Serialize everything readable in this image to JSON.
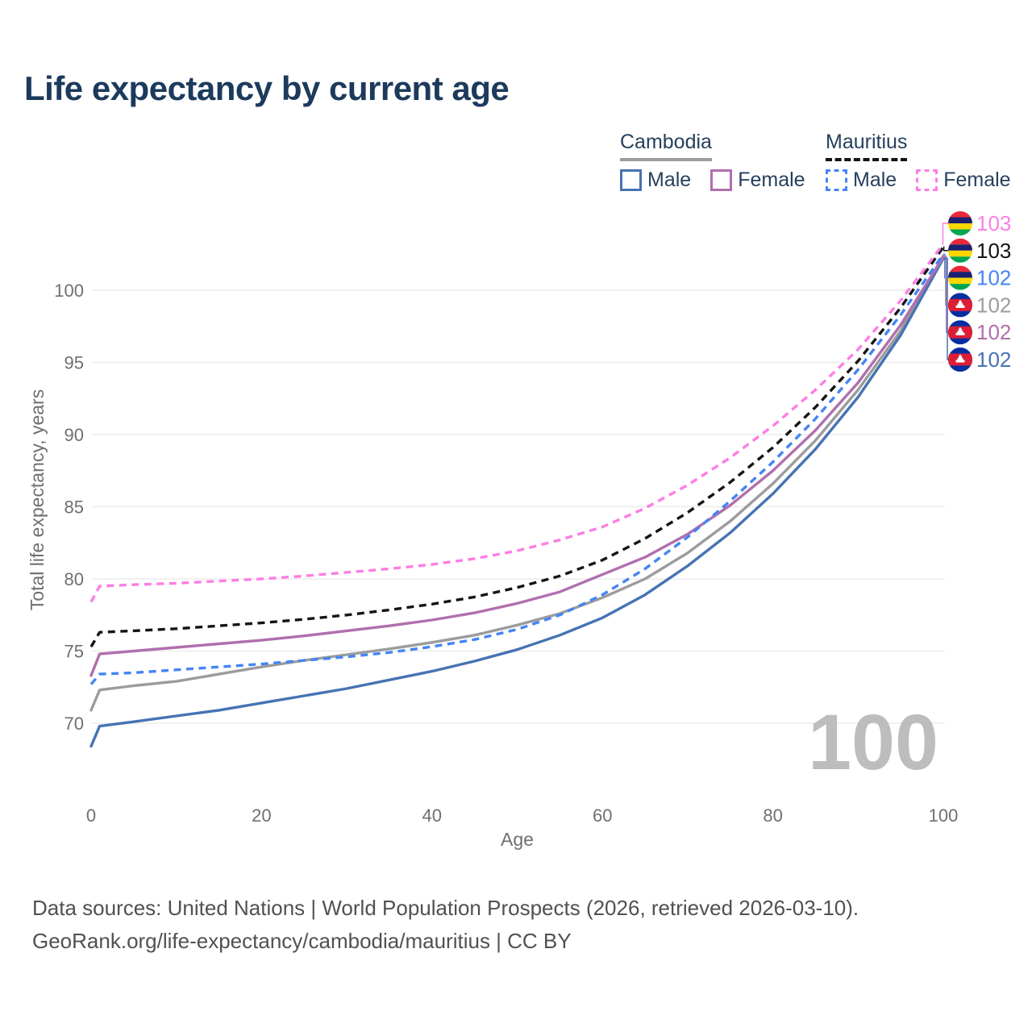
{
  "theme": {
    "background": "#ffffff",
    "title_color": "#1c3a5c",
    "legend_text_color": "#26405c",
    "axis_text_color": "#6f6f6f",
    "gridline_color": "#ebebeb",
    "footer_text_color": "#515151",
    "watermark_color": "#bdbdbd"
  },
  "header": {
    "title": "Life expectancy by current age"
  },
  "legend": {
    "groups": [
      {
        "id": "cambodia",
        "label": "Cambodia",
        "underline_style": "solid",
        "underline_color": "#9c9c9c",
        "items": [
          {
            "id": "cambodia-male",
            "label": "Male",
            "color": "#4673b3",
            "dash": "solid"
          },
          {
            "id": "cambodia-female",
            "label": "Female",
            "color": "#b06fae",
            "dash": "solid"
          }
        ]
      },
      {
        "id": "mauritius",
        "label": "Mauritius",
        "underline_style": "dashed",
        "underline_color": "#141414",
        "items": [
          {
            "id": "mauritius-male",
            "label": "Male",
            "color": "#4485f4",
            "dash": "dashed"
          },
          {
            "id": "mauritius-female",
            "label": "Female",
            "color": "#fd7ee3",
            "dash": "dashed"
          }
        ]
      }
    ]
  },
  "chart_data": {
    "type": "line",
    "title": "Life expectancy by current age",
    "xlabel": "Age",
    "ylabel": "Total life expectancy, years",
    "x_ticks": [
      0,
      20,
      40,
      60,
      80,
      100
    ],
    "y_ticks": [
      70,
      75,
      80,
      85,
      90,
      95,
      100
    ],
    "xlim": [
      0,
      100
    ],
    "ylim": [
      68,
      104
    ],
    "grid": "horizontal",
    "legend_position": "top-right",
    "watermark": "100",
    "x": [
      0,
      1,
      5,
      10,
      15,
      20,
      25,
      30,
      35,
      40,
      45,
      50,
      55,
      60,
      65,
      70,
      75,
      80,
      85,
      90,
      95,
      100
    ],
    "series": [
      {
        "id": "cambodia-all",
        "name": "Cambodia",
        "country": "Cambodia",
        "sex": "Both",
        "color": "#9c9c9c",
        "dash": "solid",
        "values": [
          70.9,
          72.3,
          72.6,
          72.9,
          73.4,
          73.9,
          74.35,
          74.75,
          75.15,
          75.6,
          76.1,
          76.8,
          77.6,
          78.7,
          80.0,
          81.8,
          84.0,
          86.6,
          89.6,
          93.1,
          97.2,
          102.4
        ]
      },
      {
        "id": "cambodia-male",
        "name": "Cambodia Male",
        "country": "Cambodia",
        "sex": "Male",
        "color": "#4673b3",
        "dash": "solid",
        "values": [
          68.4,
          69.8,
          70.1,
          70.5,
          70.9,
          71.4,
          71.9,
          72.4,
          73.0,
          73.6,
          74.3,
          75.1,
          76.1,
          77.3,
          78.9,
          80.9,
          83.2,
          85.9,
          89.0,
          92.6,
          96.9,
          102.2
        ]
      },
      {
        "id": "cambodia-female",
        "name": "Cambodia Female",
        "country": "Cambodia",
        "sex": "Female",
        "color": "#b06fae",
        "dash": "solid",
        "values": [
          73.3,
          74.8,
          75.0,
          75.25,
          75.5,
          75.75,
          76.05,
          76.4,
          76.75,
          77.15,
          77.65,
          78.3,
          79.1,
          80.3,
          81.5,
          83.1,
          85.1,
          87.5,
          90.3,
          93.6,
          97.6,
          102.3
        ]
      },
      {
        "id": "mauritius-all",
        "name": "Mauritius",
        "country": "Mauritius",
        "sex": "Both",
        "color": "#141414",
        "dash": "dashed",
        "values": [
          75.3,
          76.3,
          76.4,
          76.55,
          76.75,
          76.95,
          77.2,
          77.5,
          77.85,
          78.25,
          78.75,
          79.4,
          80.2,
          81.3,
          82.8,
          84.6,
          86.7,
          89.1,
          91.9,
          95.1,
          98.8,
          103.0
        ]
      },
      {
        "id": "mauritius-male",
        "name": "Mauritius Male",
        "country": "Mauritius",
        "sex": "Male",
        "color": "#4485f4",
        "dash": "dashed",
        "values": [
          72.7,
          73.4,
          73.5,
          73.7,
          73.9,
          74.1,
          74.35,
          74.6,
          74.9,
          75.3,
          75.8,
          76.5,
          77.5,
          78.9,
          80.7,
          82.9,
          85.4,
          88.1,
          91.1,
          94.5,
          98.3,
          102.5
        ]
      },
      {
        "id": "mauritius-female",
        "name": "Mauritius Female",
        "country": "Mauritius",
        "sex": "Female",
        "color": "#fd7ee3",
        "dash": "dashed",
        "values": [
          78.4,
          79.5,
          79.6,
          79.7,
          79.85,
          80.0,
          80.2,
          80.45,
          80.7,
          81.0,
          81.4,
          81.95,
          82.7,
          83.6,
          84.9,
          86.5,
          88.4,
          90.6,
          93.1,
          95.9,
          99.3,
          103.2
        ]
      }
    ],
    "end_labels": [
      {
        "series": "mauritius-female",
        "value": "103",
        "flag": "mauritius-flag-icon"
      },
      {
        "series": "mauritius-all",
        "value": "103",
        "flag": "mauritius-flag-icon"
      },
      {
        "series": "mauritius-male",
        "value": "102",
        "flag": "mauritius-flag-icon"
      },
      {
        "series": "cambodia-all",
        "value": "102",
        "flag": "cambodia-flag-icon"
      },
      {
        "series": "cambodia-female",
        "value": "102",
        "flag": "cambodia-flag-icon"
      },
      {
        "series": "cambodia-male",
        "value": "102",
        "flag": "cambodia-flag-icon"
      }
    ],
    "flag_colors": {
      "mauritius": [
        "#EA2839",
        "#1A206D",
        "#FFD500",
        "#00A551"
      ],
      "cambodia": {
        "blue": "#032EA1",
        "red": "#DC1E35",
        "temple": "#ffffff"
      }
    }
  },
  "footer": {
    "line1": "Data sources: United Nations | World Population Prospects (2026, retrieved 2026-03-10).",
    "line2": "GeoRank.org/life-expectancy/cambodia/mauritius | CC BY"
  }
}
